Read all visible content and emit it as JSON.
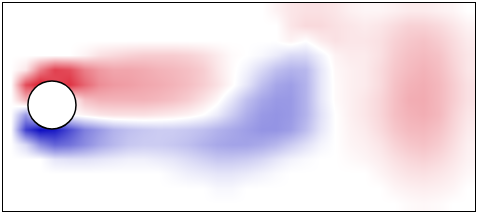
{
  "chart_data": {
    "type": "heatmap",
    "tick_labels": false,
    "zlim": [
      -1,
      1
    ],
    "z": [
      [
        0,
        0,
        0,
        0,
        0,
        0,
        0,
        0,
        0,
        0,
        0,
        0,
        0,
        0,
        0,
        0,
        0,
        0,
        0.05,
        0.1,
        0.12,
        0.12,
        0.1,
        0.06,
        0.04,
        0.04,
        0.06,
        0.08,
        0.08,
        0.06,
        0.04,
        0
      ],
      [
        0,
        0,
        0,
        0,
        0,
        0,
        0,
        0,
        0,
        0,
        0,
        0,
        0,
        0,
        0,
        0,
        0,
        0,
        0,
        0.1,
        0.15,
        0.15,
        0.12,
        0.1,
        0.08,
        0.1,
        0.14,
        0.18,
        0.18,
        0.15,
        0.1,
        0.05
      ],
      [
        0,
        0,
        0,
        0,
        0,
        0,
        0,
        0,
        0,
        0,
        0,
        0,
        0,
        0,
        0,
        0,
        0,
        0,
        0,
        0.05,
        0,
        0.08,
        0.12,
        0.1,
        0.1,
        0.12,
        0.18,
        0.22,
        0.24,
        0.2,
        0.14,
        0.08
      ],
      [
        0,
        0,
        0,
        0,
        0,
        0.05,
        0.12,
        0.15,
        0.18,
        0.2,
        0.2,
        0.2,
        0.18,
        0.14,
        0.08,
        0.02,
        0,
        -0.03,
        -0.08,
        -0.15,
        -0.15,
        -0.05,
        0.05,
        0.08,
        0.08,
        0.12,
        0.2,
        0.25,
        0.27,
        0.24,
        0.16,
        0.1
      ],
      [
        0,
        0.1,
        0.5,
        0.75,
        0.7,
        0.5,
        0.4,
        0.35,
        0.35,
        0.33,
        0.3,
        0.28,
        0.25,
        0.2,
        0.1,
        0.02,
        -0.05,
        -0.15,
        -0.25,
        -0.3,
        -0.28,
        -0.1,
        0.03,
        0.06,
        0.08,
        0.14,
        0.22,
        0.27,
        0.3,
        0.26,
        0.18,
        0.1
      ],
      [
        0,
        0.7,
        0.9,
        0.7,
        0.8,
        0.6,
        0.45,
        0.4,
        0.38,
        0.35,
        0.33,
        0.3,
        0.26,
        0.2,
        0.12,
        0.02,
        -0.1,
        -0.25,
        -0.35,
        -0.38,
        -0.3,
        -0.1,
        0.02,
        0.06,
        0.08,
        0.14,
        0.24,
        0.3,
        0.32,
        0.28,
        0.2,
        0.12
      ],
      [
        0,
        0.3,
        0,
        0,
        0,
        0.25,
        0.3,
        0.3,
        0.3,
        0.3,
        0.28,
        0.25,
        0.2,
        0.12,
        0.03,
        -0.1,
        -0.25,
        -0.35,
        -0.4,
        -0.4,
        -0.3,
        -0.1,
        0.02,
        0.06,
        0.1,
        0.16,
        0.25,
        0.32,
        0.33,
        0.28,
        0.2,
        0.12
      ],
      [
        0,
        -0.4,
        0,
        0,
        0,
        0.05,
        0.1,
        0.12,
        0.12,
        0.12,
        0.1,
        0.08,
        0.05,
        0.0,
        -0.08,
        -0.2,
        -0.32,
        -0.4,
        -0.42,
        -0.4,
        -0.3,
        -0.12,
        0,
        0.06,
        0.1,
        0.16,
        0.25,
        0.3,
        0.32,
        0.28,
        0.18,
        0.1
      ],
      [
        0,
        -0.75,
        -0.95,
        -0.9,
        -0.7,
        -0.5,
        -0.4,
        -0.3,
        -0.25,
        -0.22,
        -0.2,
        -0.2,
        -0.22,
        -0.25,
        -0.3,
        -0.34,
        -0.38,
        -0.42,
        -0.42,
        -0.38,
        -0.26,
        -0.1,
        0,
        0.05,
        0.08,
        0.14,
        0.22,
        0.27,
        0.28,
        0.24,
        0.16,
        0.08
      ],
      [
        0,
        -0.15,
        -0.45,
        -0.6,
        -0.55,
        -0.45,
        -0.35,
        -0.28,
        -0.22,
        -0.2,
        -0.2,
        -0.22,
        -0.25,
        -0.3,
        -0.34,
        -0.36,
        -0.36,
        -0.33,
        -0.28,
        -0.2,
        -0.12,
        -0.04,
        0,
        0.04,
        0.06,
        0.1,
        0.17,
        0.22,
        0.24,
        0.2,
        0.13,
        0.06
      ],
      [
        0,
        0,
        0,
        -0.1,
        -0.12,
        -0.12,
        -0.1,
        -0.08,
        -0.06,
        -0.06,
        -0.08,
        -0.1,
        -0.14,
        -0.18,
        -0.22,
        -0.22,
        -0.2,
        -0.16,
        -0.1,
        -0.05,
        -0.02,
        0,
        0,
        0.02,
        0.04,
        0.07,
        0.12,
        0.16,
        0.18,
        0.15,
        0.1,
        0.05
      ],
      [
        0,
        0,
        0,
        0,
        0,
        0,
        0,
        0,
        0,
        0,
        0,
        -0.03,
        -0.06,
        -0.08,
        -0.1,
        -0.1,
        -0.08,
        -0.05,
        -0.02,
        0,
        0,
        0,
        0,
        0,
        0,
        0.04,
        0.08,
        0.11,
        0.12,
        0.1,
        0.07,
        0.03
      ],
      [
        0,
        0,
        0,
        0,
        0,
        0,
        0,
        0,
        0,
        0,
        0,
        0,
        0,
        0,
        -0.03,
        -0.03,
        0,
        0,
        0,
        0,
        0,
        0,
        0,
        0,
        0,
        0,
        0.04,
        0.06,
        0.07,
        0.06,
        0.04,
        0
      ],
      [
        0,
        0,
        0,
        0,
        0,
        0,
        0,
        0,
        0,
        0,
        0,
        0,
        0,
        0,
        0,
        0,
        0,
        0,
        0,
        0,
        0,
        0,
        0,
        0,
        0,
        0,
        0,
        0.02,
        0.03,
        0.02,
        0,
        0
      ]
    ]
  }
}
